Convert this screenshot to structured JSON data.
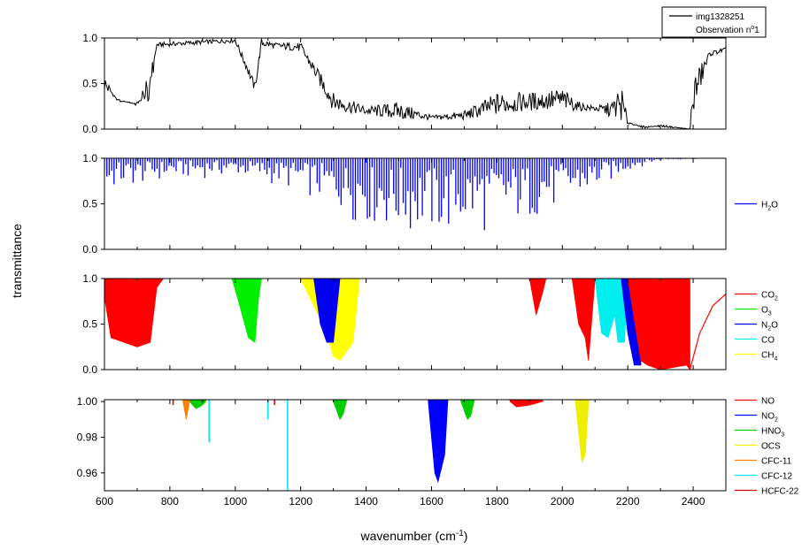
{
  "colors": {
    "observation": "#000000",
    "H2O": "#0000ff",
    "CO2": "#ff0000",
    "O3": "#00ee00",
    "N2O": "#0000ee",
    "CO": "#00eeee",
    "CH4": "#ffff00",
    "NO": "#ff0000",
    "NO2": "#0000ff",
    "HNO3": "#00cc00",
    "OCS": "#eeee00",
    "CFC-11": "#ff8000",
    "CFC-12": "#00e0ff",
    "HCFC-22": "#cc0000"
  },
  "chart_data": {
    "type": "line",
    "xlabel_main": "wavenumber (cm",
    "xlabel_sup": "-1",
    "xlabel_tail": ")",
    "ylabel": "transmittance",
    "xlim": [
      600,
      2500
    ],
    "xticks": [
      "600",
      "800",
      "1000",
      "1200",
      "1400",
      "1600",
      "1800",
      "2000",
      "2200",
      "2400"
    ],
    "legend_box": {
      "line1": "img1328251",
      "line2_main": "Observation n",
      "line2_sup": "o",
      "line2_tail": "1"
    },
    "panels": [
      {
        "ylim": [
          0,
          1
        ],
        "yticks": [
          "0.0",
          "0.5",
          "1.0"
        ],
        "series": [
          {
            "key": "observation",
            "name": "img1328251",
            "envelope": [
              [
                600,
                0.6
              ],
              [
                640,
                0.3
              ],
              [
                700,
                0.3
              ],
              [
                740,
                0.3
              ],
              [
                760,
                0.95
              ],
              [
                1000,
                1.0
              ],
              [
                1040,
                0.7
              ],
              [
                1060,
                0.5
              ],
              [
                1080,
                1.0
              ],
              [
                1120,
                0.95
              ],
              [
                1200,
                0.95
              ],
              [
                1300,
                0.4
              ],
              [
                1400,
                0.25
              ],
              [
                1500,
                0.3
              ],
              [
                1600,
                0.15
              ],
              [
                1700,
                0.2
              ],
              [
                1800,
                0.4
              ],
              [
                1900,
                0.4
              ],
              [
                2000,
                0.45
              ],
              [
                2050,
                0.3
              ],
              [
                2100,
                0.25
              ],
              [
                2150,
                0.3
              ],
              [
                2180,
                0.5
              ],
              [
                2200,
                0.1
              ],
              [
                2250,
                0.0
              ],
              [
                2300,
                0.05
              ],
              [
                2390,
                0.0
              ],
              [
                2400,
                0.6
              ],
              [
                2450,
                0.85
              ],
              [
                2500,
                0.9
              ]
            ],
            "floor": [
              [
                600,
                0.4
              ],
              [
                700,
                0.25
              ],
              [
                760,
                0.9
              ],
              [
                1000,
                0.95
              ],
              [
                1060,
                0.4
              ],
              [
                1080,
                0.9
              ],
              [
                1200,
                0.85
              ],
              [
                1300,
                0.2
              ],
              [
                1500,
                0.1
              ],
              [
                1700,
                0.1
              ],
              [
                1900,
                0.2
              ],
              [
                2100,
                0.2
              ],
              [
                2200,
                0.05
              ],
              [
                2390,
                0.0
              ],
              [
                2450,
                0.8
              ],
              [
                2500,
                0.85
              ]
            ]
          }
        ]
      },
      {
        "ylim": [
          0,
          1
        ],
        "yticks": [
          "0.0",
          "0.5",
          "1.0"
        ],
        "legend": [
          {
            "key": "H2O",
            "main": "H",
            "sub": "2",
            "tail": "O"
          }
        ],
        "series": [
          {
            "key": "H2O",
            "min": [
              [
                600,
                0.6
              ],
              [
                800,
                0.75
              ],
              [
                1000,
                0.8
              ],
              [
                1200,
                0.6
              ],
              [
                1300,
                0.4
              ],
              [
                1400,
                0.2
              ],
              [
                1500,
                0.08
              ],
              [
                1600,
                0.05
              ],
              [
                1700,
                0.08
              ],
              [
                1800,
                0.15
              ],
              [
                1900,
                0.25
              ],
              [
                2000,
                0.4
              ],
              [
                2100,
                0.6
              ],
              [
                2200,
                0.85
              ],
              [
                2300,
                0.98
              ],
              [
                2500,
                1.0
              ]
            ]
          }
        ]
      },
      {
        "ylim": [
          0,
          1
        ],
        "yticks": [
          "0.0",
          "0.5",
          "1.0"
        ],
        "legend": [
          {
            "key": "CO2",
            "main": "CO",
            "sub": "2",
            "tail": ""
          },
          {
            "key": "O3",
            "main": "O",
            "sub": "3",
            "tail": ""
          },
          {
            "key": "N2O",
            "main": "N",
            "sub": "2",
            "tail": "O"
          },
          {
            "key": "CO",
            "main": "CO",
            "sub": "",
            "tail": ""
          },
          {
            "key": "CH4",
            "main": "CH",
            "sub": "4",
            "tail": ""
          }
        ],
        "bands": [
          {
            "key": "CO2",
            "points": [
              [
                600,
                0.8
              ],
              [
                620,
                0.35
              ],
              [
                660,
                0.3
              ],
              [
                700,
                0.25
              ],
              [
                740,
                0.3
              ],
              [
                760,
                0.9
              ],
              [
                780,
                1.0
              ]
            ]
          },
          {
            "key": "O3",
            "points": [
              [
                990,
                1.0
              ],
              [
                1010,
                0.75
              ],
              [
                1040,
                0.35
              ],
              [
                1060,
                0.3
              ],
              [
                1070,
                0.75
              ],
              [
                1080,
                1.0
              ]
            ]
          },
          {
            "key": "CH4",
            "points": [
              [
                1200,
                1.0
              ],
              [
                1240,
                0.7
              ],
              [
                1280,
                0.4
              ],
              [
                1300,
                0.15
              ],
              [
                1320,
                0.1
              ],
              [
                1360,
                0.3
              ],
              [
                1380,
                1.0
              ]
            ]
          },
          {
            "key": "N2O",
            "points": [
              [
                1240,
                1.0
              ],
              [
                1260,
                0.5
              ],
              [
                1280,
                0.3
              ],
              [
                1300,
                0.3
              ],
              [
                1320,
                1.0
              ]
            ]
          },
          {
            "key": "CO2",
            "points": [
              [
                1900,
                1.0
              ],
              [
                1920,
                0.6
              ],
              [
                1940,
                0.85
              ],
              [
                1950,
                1.0
              ]
            ]
          },
          {
            "key": "CO2",
            "points": [
              [
                2030,
                1.0
              ],
              [
                2050,
                0.5
              ],
              [
                2070,
                0.35
              ],
              [
                2080,
                0.1
              ],
              [
                2100,
                1.0
              ]
            ]
          },
          {
            "key": "CO",
            "points": [
              [
                2100,
                1.0
              ],
              [
                2120,
                0.4
              ],
              [
                2140,
                0.35
              ],
              [
                2160,
                0.6
              ],
              [
                2170,
                0.3
              ],
              [
                2190,
                0.3
              ],
              [
                2200,
                1.0
              ]
            ]
          },
          {
            "key": "N2O",
            "points": [
              [
                2180,
                1.0
              ],
              [
                2200,
                0.4
              ],
              [
                2220,
                0.05
              ],
              [
                2240,
                0.05
              ],
              [
                2250,
                1.0
              ]
            ]
          },
          {
            "key": "CO2",
            "points": [
              [
                2200,
                1.0
              ],
              [
                2240,
                0.1
              ],
              [
                2260,
                0.05
              ],
              [
                2300,
                0.0
              ],
              [
                2380,
                0.05
              ],
              [
                2390,
                0.0
              ]
            ]
          }
        ],
        "lines": [
          {
            "key": "CO2",
            "points": [
              [
                2390,
                0.0
              ],
              [
                2420,
                0.4
              ],
              [
                2460,
                0.7
              ],
              [
                2500,
                0.83
              ]
            ]
          }
        ]
      },
      {
        "ylim": [
          0.95,
          1.001
        ],
        "yticks": [
          "0.96",
          "0.98",
          "1.00"
        ],
        "legend": [
          {
            "key": "NO",
            "main": "NO",
            "sub": "",
            "tail": ""
          },
          {
            "key": "NO2",
            "main": "NO",
            "sub": "2",
            "tail": ""
          },
          {
            "key": "HNO3",
            "main": "HNO",
            "sub": "3",
            "tail": ""
          },
          {
            "key": "OCS",
            "main": "OCS",
            "sub": "",
            "tail": ""
          },
          {
            "key": "CFC-11",
            "main": "CFC-11",
            "sub": "",
            "tail": ""
          },
          {
            "key": "CFC-12",
            "main": "CFC-12",
            "sub": "",
            "tail": ""
          },
          {
            "key": "HCFC-22",
            "main": "HCFC-22",
            "sub": "",
            "tail": ""
          }
        ],
        "bands": [
          {
            "key": "HNO3",
            "points": [
              [
                860,
                1.0
              ],
              [
                880,
                0.996
              ],
              [
                900,
                0.998
              ],
              [
                910,
                1.0
              ]
            ]
          },
          {
            "key": "CFC-11",
            "points": [
              [
                840,
                1.0
              ],
              [
                850,
                0.99
              ],
              [
                860,
                1.0
              ]
            ]
          },
          {
            "key": "HNO3",
            "points": [
              [
                1300,
                1.0
              ],
              [
                1320,
                0.99
              ],
              [
                1330,
                0.993
              ],
              [
                1340,
                1.0
              ]
            ]
          },
          {
            "key": "NO2",
            "points": [
              [
                1590,
                1.0
              ],
              [
                1610,
                0.96
              ],
              [
                1620,
                0.955
              ],
              [
                1640,
                0.97
              ],
              [
                1650,
                1.0
              ]
            ]
          },
          {
            "key": "HNO3",
            "points": [
              [
                1690,
                1.0
              ],
              [
                1710,
                0.99
              ],
              [
                1720,
                0.992
              ],
              [
                1730,
                1.0
              ]
            ]
          },
          {
            "key": "NO",
            "points": [
              [
                1840,
                1.0
              ],
              [
                1860,
                0.997
              ],
              [
                1900,
                0.998
              ],
              [
                1940,
                1.0
              ]
            ]
          },
          {
            "key": "OCS",
            "points": [
              [
                2040,
                1.0
              ],
              [
                2060,
                0.966
              ],
              [
                2070,
                0.97
              ],
              [
                2080,
                1.0
              ]
            ]
          }
        ],
        "spikes": [
          {
            "key": "CFC-12",
            "x": 920,
            "y": 0.977
          },
          {
            "key": "CFC-12",
            "x": 1100,
            "y": 0.99
          },
          {
            "key": "CFC-12",
            "x": 1160,
            "y": 0.95
          },
          {
            "key": "HCFC-22",
            "x": 810,
            "y": 0.998
          },
          {
            "key": "HCFC-22",
            "x": 1120,
            "y": 0.998
          }
        ]
      }
    ]
  }
}
